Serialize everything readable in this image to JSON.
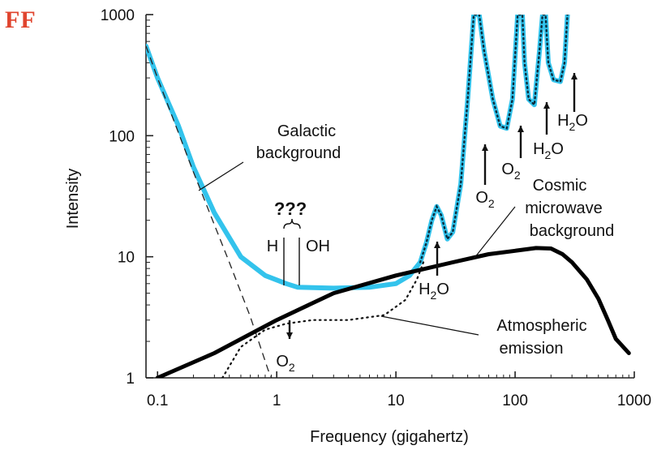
{
  "brand": {
    "text": "FF",
    "color": "#e0442e"
  },
  "colors": {
    "total": "#33c3ec",
    "cmb": "#000000",
    "atmos": "#111111",
    "axis": "#222222"
  },
  "chart_data": {
    "type": "line",
    "x_scale": "log",
    "y_scale": "log",
    "xlabel": "Frequency (gigahertz)",
    "ylabel": "Intensity",
    "xlim": [
      0.08,
      1000
    ],
    "ylim": [
      1,
      1000
    ],
    "x_ticks": [
      {
        "value": 0.1,
        "label": "0.1"
      },
      {
        "value": 1,
        "label": "1"
      },
      {
        "value": 10,
        "label": "10"
      },
      {
        "value": 100,
        "label": "100"
      },
      {
        "value": 1000,
        "label": "1000"
      }
    ],
    "y_ticks": [
      {
        "value": 1,
        "label": "1"
      },
      {
        "value": 10,
        "label": "10"
      },
      {
        "value": 100,
        "label": "100"
      },
      {
        "value": 1000,
        "label": "1000"
      }
    ],
    "grid": false,
    "series": [
      {
        "key": "total",
        "style": "thick light-blue with dotted black overlay above 15 GHz",
        "points": [
          [
            0.08,
            550
          ],
          [
            0.1,
            300
          ],
          [
            0.15,
            120
          ],
          [
            0.2,
            55
          ],
          [
            0.3,
            23
          ],
          [
            0.5,
            10
          ],
          [
            0.8,
            7
          ],
          [
            1.2,
            6
          ],
          [
            1.5,
            5.6
          ],
          [
            3,
            5.5
          ],
          [
            6,
            5.6
          ],
          [
            10,
            6
          ],
          [
            13,
            7
          ],
          [
            16,
            9
          ],
          [
            18,
            13
          ],
          [
            20,
            20
          ],
          [
            22,
            26
          ],
          [
            24,
            22
          ],
          [
            27,
            14
          ],
          [
            30,
            16
          ],
          [
            35,
            40
          ],
          [
            40,
            200
          ],
          [
            45,
            1000
          ],
          [
            50,
            1000
          ],
          [
            55,
            500
          ],
          [
            65,
            200
          ],
          [
            75,
            120
          ],
          [
            85,
            115
          ],
          [
            95,
            200
          ],
          [
            105,
            1000
          ],
          [
            115,
            1000
          ],
          [
            120,
            400
          ],
          [
            130,
            200
          ],
          [
            145,
            180
          ],
          [
            160,
            500
          ],
          [
            170,
            1000
          ],
          [
            180,
            1000
          ],
          [
            190,
            400
          ],
          [
            210,
            290
          ],
          [
            240,
            280
          ],
          [
            260,
            400
          ],
          [
            275,
            1000
          ]
        ]
      },
      {
        "key": "galactic_extrapolation",
        "style": "dashed",
        "points": [
          [
            0.08,
            550
          ],
          [
            0.1,
            300
          ],
          [
            0.2,
            50
          ],
          [
            0.4,
            9
          ],
          [
            0.6,
            3.2
          ],
          [
            0.85,
            1.15
          ],
          [
            1,
            0.8
          ]
        ]
      },
      {
        "key": "cmb",
        "name": "Cosmic microwave background",
        "style": "thick black",
        "points": [
          [
            0.1,
            1
          ],
          [
            0.3,
            1.6
          ],
          [
            1,
            3
          ],
          [
            3,
            5
          ],
          [
            10,
            7
          ],
          [
            30,
            9
          ],
          [
            60,
            10.5
          ],
          [
            100,
            11.2
          ],
          [
            150,
            11.8
          ],
          [
            200,
            11.7
          ],
          [
            250,
            10.5
          ],
          [
            300,
            9
          ],
          [
            400,
            6.5
          ],
          [
            500,
            4.5
          ],
          [
            600,
            3
          ],
          [
            700,
            2.1
          ],
          [
            900,
            1.6
          ]
        ]
      },
      {
        "key": "atmos",
        "name": "Atmospheric emission",
        "style": "dotted",
        "points": [
          [
            0.35,
            1
          ],
          [
            0.5,
            1.8
          ],
          [
            0.8,
            2.5
          ],
          [
            1.2,
            2.8
          ],
          [
            2,
            3
          ],
          [
            4,
            3
          ],
          [
            8,
            3.3
          ],
          [
            12,
            4.4
          ],
          [
            15,
            6.5
          ],
          [
            17,
            9
          ]
        ]
      }
    ],
    "annotations": [
      {
        "text_lines": [
          "Galactic",
          "background"
        ],
        "target": "total"
      },
      {
        "text_lines": [
          "Cosmic",
          "microwave",
          "background"
        ],
        "target": "cmb"
      },
      {
        "text_lines": [
          "Atmospheric",
          "emission"
        ],
        "target": "atmos"
      },
      {
        "text": "???"
      },
      {
        "text": "H"
      },
      {
        "text": "OH"
      }
    ],
    "molecule_markers": [
      {
        "mol": "O",
        "sub": "2",
        "at_ghz": 1.5,
        "pointer": "down"
      },
      {
        "mol": "H",
        "sub": "2",
        "suffix": "O",
        "at_ghz": 25,
        "pointer": "up"
      },
      {
        "mol": "O",
        "sub": "2",
        "at_ghz": 60,
        "pointer": "up"
      },
      {
        "mol": "O",
        "sub": "2",
        "at_ghz": 100,
        "pointer": "up"
      },
      {
        "mol": "H",
        "sub": "2",
        "suffix": "O",
        "at_ghz": 140,
        "pointer": "up"
      },
      {
        "mol": "H",
        "sub": "2",
        "suffix": "O",
        "at_ghz": 230,
        "pointer": "up"
      }
    ]
  }
}
